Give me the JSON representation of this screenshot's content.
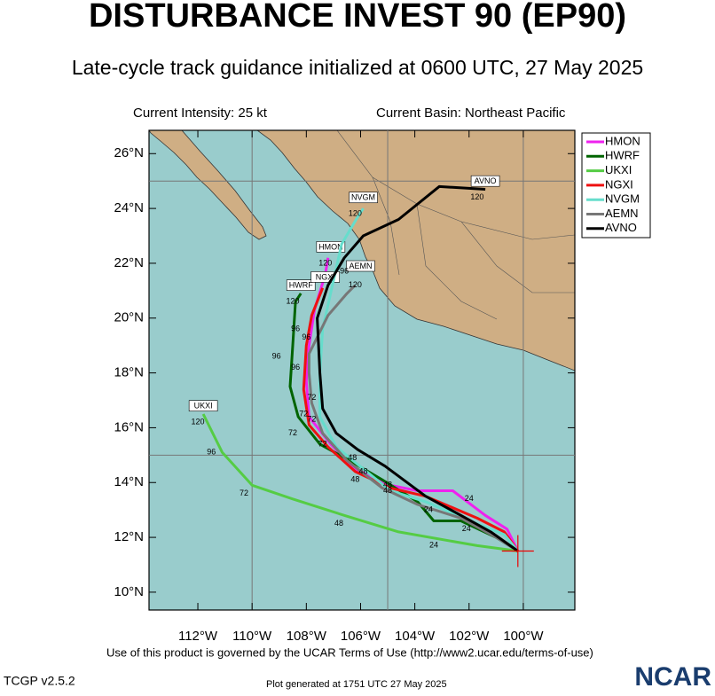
{
  "header": {
    "title": "DISTURBANCE INVEST 90 (EP90)",
    "subtitle": "Late-cycle track guidance initialized at 0600 UTC, 27 May 2025",
    "intensity": "Current Intensity: 25 kt",
    "basin": "Current Basin: Northeast Pacific"
  },
  "map": {
    "lon_range": [
      -113.8,
      -98.1
    ],
    "lat_range": [
      9.35,
      26.85
    ],
    "lat_ticks": [
      {
        "value": 10,
        "label": "10°N"
      },
      {
        "value": 12,
        "label": "12°N"
      },
      {
        "value": 14,
        "label": "14°N"
      },
      {
        "value": 16,
        "label": "16°N"
      },
      {
        "value": 18,
        "label": "18°N"
      },
      {
        "value": 20,
        "label": "20°N"
      },
      {
        "value": 22,
        "label": "22°N"
      },
      {
        "value": 24,
        "label": "24°N"
      },
      {
        "value": 26,
        "label": "26°N"
      }
    ],
    "lon_ticks": [
      {
        "value": -112,
        "label": "112°W"
      },
      {
        "value": -110,
        "label": "110°W"
      },
      {
        "value": -108,
        "label": "108°W"
      },
      {
        "value": -106,
        "label": "106°W"
      },
      {
        "value": -104,
        "label": "104°W"
      },
      {
        "value": -102,
        "label": "102°W"
      },
      {
        "value": -100,
        "label": "100°W"
      }
    ],
    "grid_lons": [
      -110,
      -105,
      -100
    ],
    "grid_lats": [
      15,
      25
    ]
  },
  "models": [
    {
      "name": "HMON",
      "color": "#ee22ee",
      "lon": [
        -100.2,
        -100.6,
        -101.4,
        -102.6,
        -103.9,
        -104.9,
        -106.2,
        -107.1,
        -107.9,
        -108.0,
        -107.9,
        -107.7,
        -107.3,
        -107.2
      ],
      "lat": [
        11.5,
        12.3,
        12.8,
        13.7,
        13.7,
        13.9,
        14.5,
        15.4,
        16.4,
        17.7,
        19.0,
        20.3,
        21.6,
        22.2
      ],
      "label_lon": -107.1,
      "label_lat": 22.6
    },
    {
      "name": "HWRF",
      "color": "#006400",
      "lon": [
        -100.2,
        -101.0,
        -102.3,
        -103.3,
        -103.9,
        -105.2,
        -106.4,
        -107.5,
        -108.3,
        -108.6,
        -108.5,
        -108.4,
        -108.2
      ],
      "lat": [
        11.5,
        12.0,
        12.6,
        12.6,
        13.3,
        14.1,
        14.8,
        15.4,
        16.4,
        17.5,
        19.0,
        20.6,
        20.9
      ],
      "label_lon": -108.2,
      "label_lat": 21.2
    },
    {
      "name": "UKXI",
      "color": "#55cc44",
      "lon": [
        -100.2,
        -101.7,
        -104.6,
        -106.6,
        -108.5,
        -110.0,
        -111.1,
        -111.8
      ],
      "lat": [
        11.5,
        11.7,
        12.2,
        12.8,
        13.4,
        13.9,
        15.1,
        16.5
      ],
      "label_lon": -111.8,
      "label_lat": 16.8
    },
    {
      "name": "NGXI",
      "color": "#ee1111",
      "lon": [
        -100.2,
        -100.7,
        -101.7,
        -103.6,
        -104.9,
        -106.2,
        -107.2,
        -107.9,
        -108.1,
        -108.0,
        -107.8,
        -107.4
      ],
      "lat": [
        11.5,
        12.2,
        12.7,
        13.5,
        13.8,
        14.4,
        15.3,
        16.1,
        17.4,
        19.0,
        20.1,
        21.1
      ],
      "label_lon": -107.3,
      "label_lat": 21.5
    },
    {
      "name": "NVGM",
      "color": "#66ddcc",
      "lon": [
        -100.2,
        -100.7,
        -101.7,
        -103.6,
        -104.9,
        -105.9,
        -106.9,
        -107.5,
        -107.5,
        -107.4,
        -106.7,
        -106.1,
        -105.9
      ],
      "lat": [
        11.5,
        12.1,
        12.5,
        13.3,
        13.7,
        14.5,
        15.3,
        16.4,
        18.0,
        19.6,
        22.7,
        23.7,
        24.0
      ],
      "label_lon": -105.9,
      "label_lat": 24.4
    },
    {
      "name": "AEMN",
      "color": "#777777",
      "lon": [
        -100.2,
        -101.0,
        -102.3,
        -103.9,
        -105.2,
        -106.5,
        -107.4,
        -107.8,
        -107.9,
        -107.9,
        -107.2,
        -106.5,
        -106.2
      ],
      "lat": [
        11.5,
        12.0,
        12.7,
        13.2,
        13.8,
        14.8,
        15.8,
        16.9,
        18.0,
        18.7,
        20.1,
        20.9,
        21.2
      ],
      "label_lon": -106.0,
      "label_lat": 21.9
    },
    {
      "name": "AVNO",
      "color": "#000000",
      "lon": [
        -100.2,
        -101.2,
        -102.3,
        -103.6,
        -105.1,
        -106.1,
        -106.9,
        -107.4,
        -107.5,
        -107.6,
        -107.2,
        -106.6,
        -105.9,
        -104.6,
        -103.1,
        -101.4
      ],
      "lat": [
        11.5,
        12.2,
        12.8,
        13.5,
        14.6,
        15.2,
        15.8,
        16.7,
        18.0,
        20.0,
        21.2,
        22.2,
        23.0,
        23.6,
        24.8,
        24.7
      ],
      "label_lon": -101.4,
      "label_lat": 25.0
    }
  ],
  "hour_labels": [
    {
      "hour": 120,
      "lon": -107.3,
      "lat": 22.0
    },
    {
      "hour": 120,
      "lon": -108.5,
      "lat": 20.6
    },
    {
      "hour": 96,
      "lon": -108.4,
      "lat": 19.6
    },
    {
      "hour": 96,
      "lon": -109.1,
      "lat": 18.6
    },
    {
      "hour": 96,
      "lon": -108.4,
      "lat": 18.2
    },
    {
      "hour": 96,
      "lon": -108.0,
      "lat": 19.3
    },
    {
      "hour": 72,
      "lon": -107.8,
      "lat": 17.1
    },
    {
      "hour": 72,
      "lon": -108.1,
      "lat": 16.5
    },
    {
      "hour": 72,
      "lon": -107.8,
      "lat": 16.3
    },
    {
      "hour": 72,
      "lon": -108.5,
      "lat": 15.8
    },
    {
      "hour": 72,
      "lon": -107.4,
      "lat": 15.4
    },
    {
      "hour": 48,
      "lon": -106.3,
      "lat": 14.9
    },
    {
      "hour": 48,
      "lon": -105.9,
      "lat": 14.4
    },
    {
      "hour": 48,
      "lon": -106.2,
      "lat": 14.1
    },
    {
      "hour": 48,
      "lon": -105.0,
      "lat": 13.9
    },
    {
      "hour": 48,
      "lon": -105.0,
      "lat": 13.7
    },
    {
      "hour": 48,
      "lon": -106.8,
      "lat": 12.5
    },
    {
      "hour": 24,
      "lon": -102.0,
      "lat": 13.4
    },
    {
      "hour": 24,
      "lon": -103.5,
      "lat": 13.0
    },
    {
      "hour": 24,
      "lon": -102.1,
      "lat": 12.3
    },
    {
      "hour": 24,
      "lon": -103.3,
      "lat": 11.7
    },
    {
      "hour": 120,
      "lon": -112.0,
      "lat": 16.2
    },
    {
      "hour": 96,
      "lon": -111.5,
      "lat": 15.1
    },
    {
      "hour": 72,
      "lon": -110.3,
      "lat": 13.6
    },
    {
      "hour": 120,
      "lon": -106.2,
      "lat": 21.2
    },
    {
      "hour": 96,
      "lon": -106.6,
      "lat": 21.7
    },
    {
      "hour": 120,
      "lon": -106.2,
      "lat": 23.8
    },
    {
      "hour": 120,
      "lon": -101.7,
      "lat": 24.4
    }
  ],
  "footer": {
    "terms": "Use of this product is governed by the UCAR Terms of Use (http://www2.ucar.edu/terms-of-use)",
    "version": "TCGP v2.5.2",
    "generated": "Plot generated at 1751 UTC   27 May 2025",
    "logo": "NCAR"
  }
}
